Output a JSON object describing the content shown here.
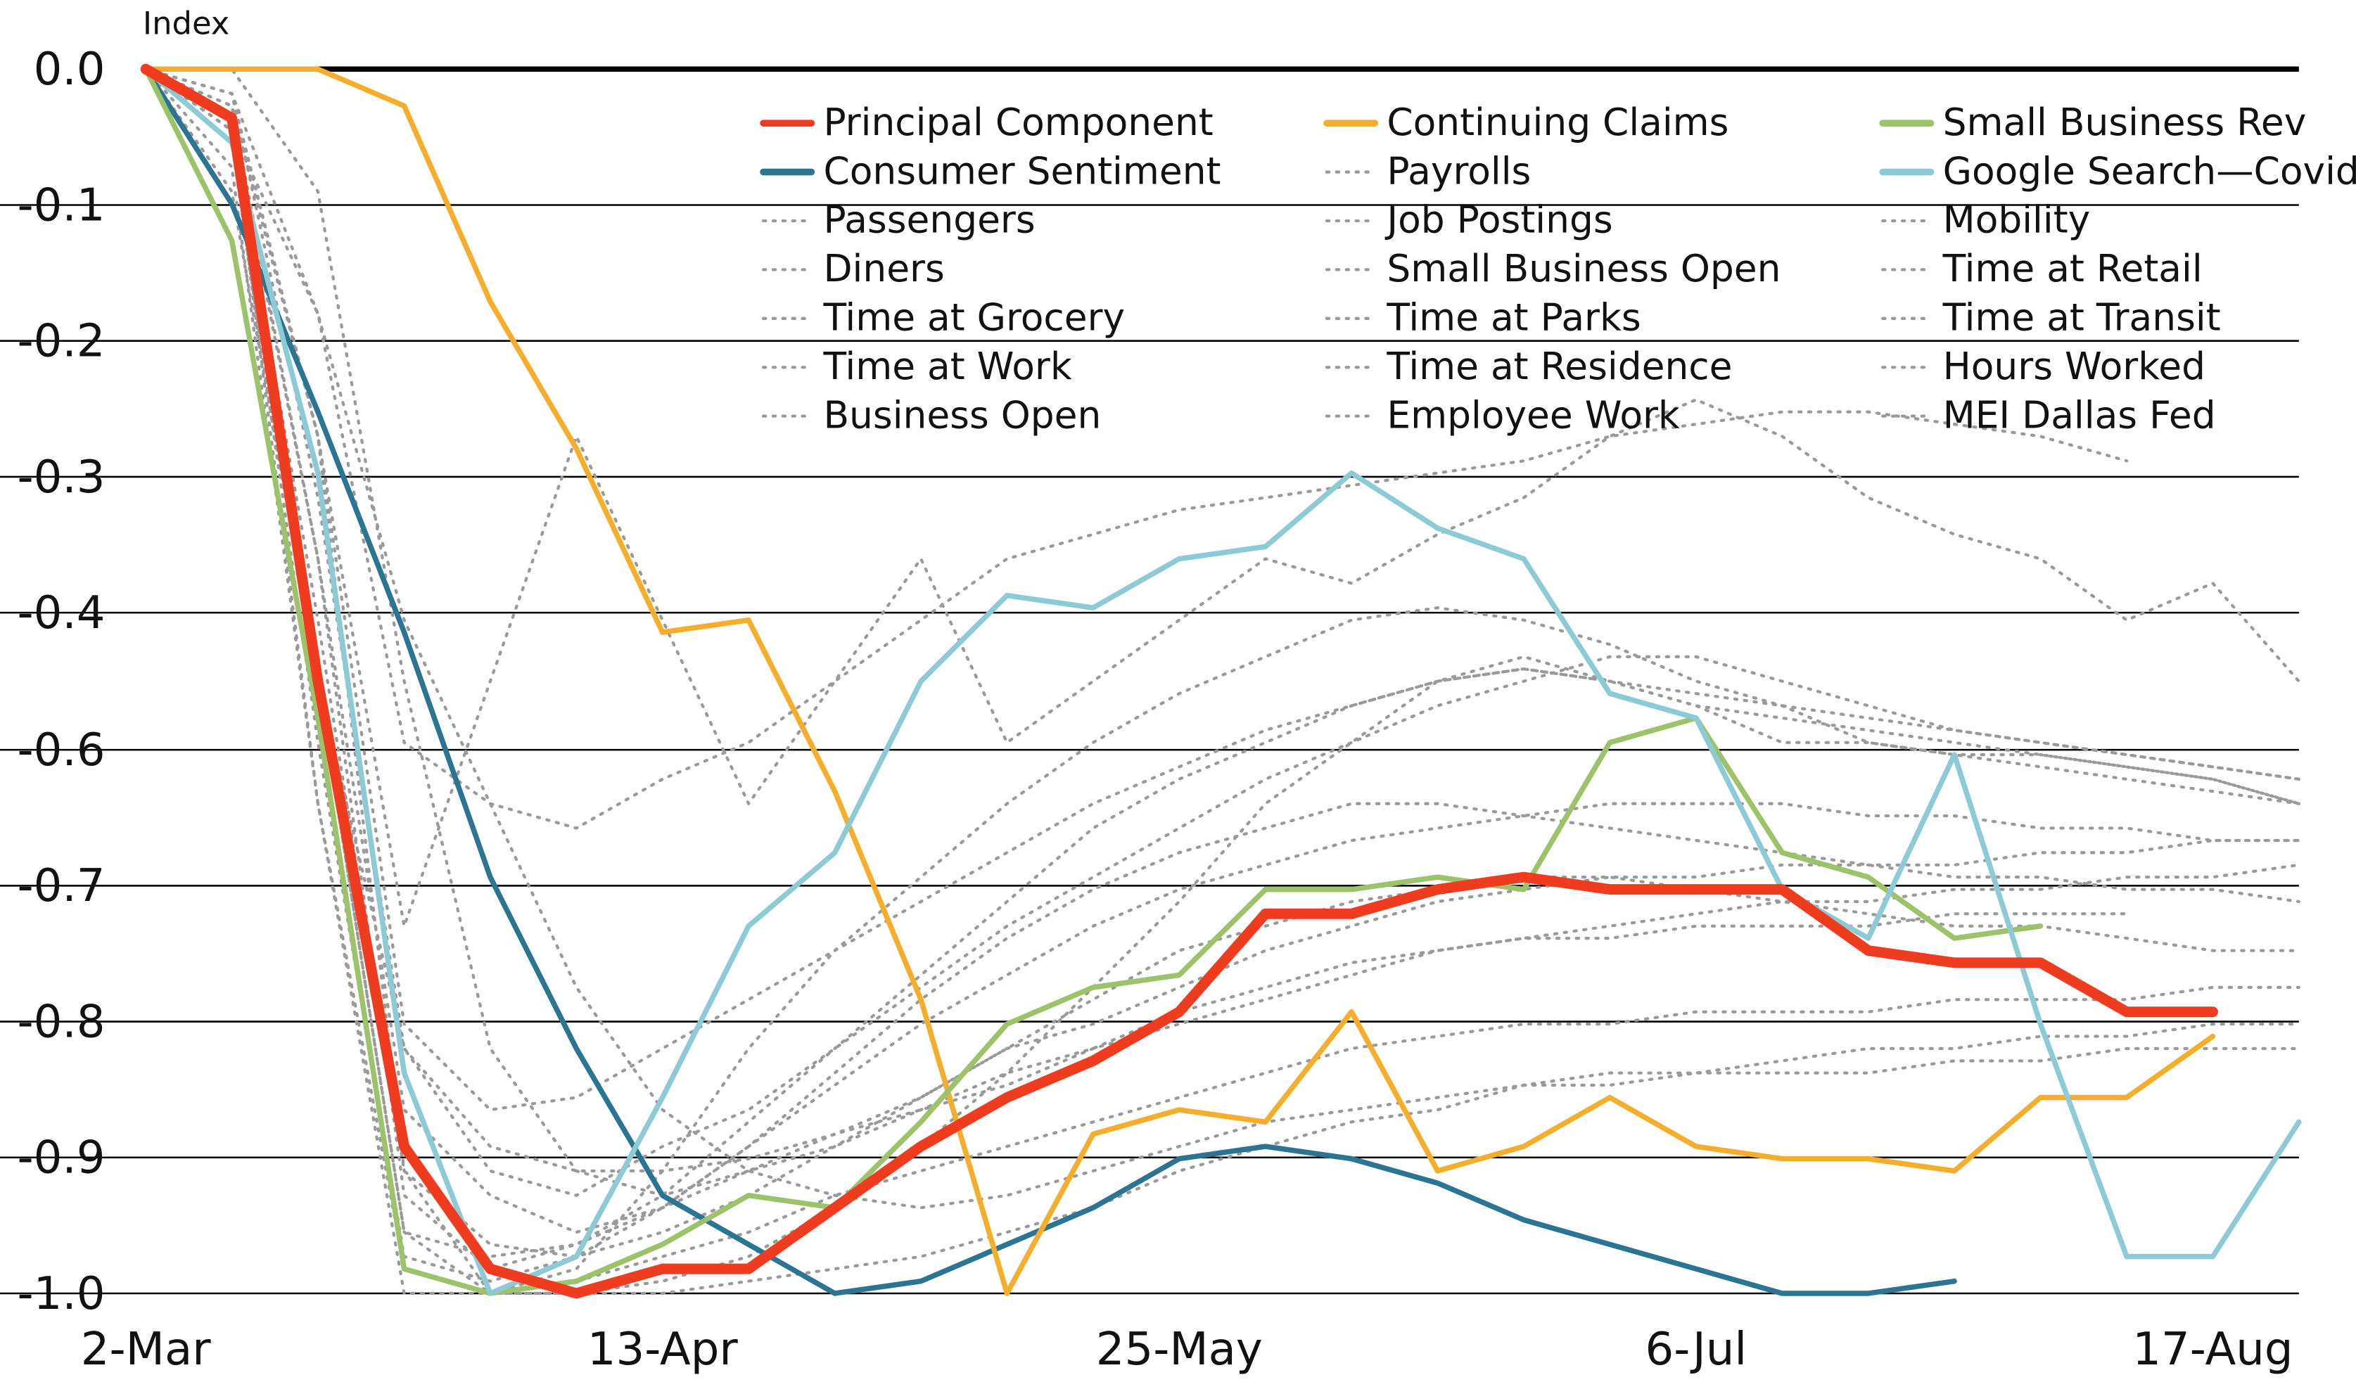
{
  "chart_data": {
    "type": "line",
    "y_label": "Index",
    "categories": [
      "2-Mar",
      null,
      null,
      null,
      null,
      null,
      "13-Apr",
      null,
      null,
      null,
      null,
      null,
      "25-May",
      null,
      null,
      null,
      null,
      null,
      "6-Jul",
      null,
      null,
      null,
      null,
      null,
      "17-Aug",
      null
    ],
    "ylim": [
      -1,
      0
    ],
    "yticks": [
      {
        "value": 0,
        "label": "0.0"
      },
      {
        "value": -0.111,
        "label": "-0.1"
      },
      {
        "value": -0.222,
        "label": "-0.2"
      },
      {
        "value": -0.333,
        "label": "-0.3"
      },
      {
        "value": -0.444,
        "label": "-0.4"
      },
      {
        "value": -0.556,
        "label": "-0.6"
      },
      {
        "value": -0.667,
        "label": "-0.7"
      },
      {
        "value": -0.778,
        "label": "-0.8"
      },
      {
        "value": -0.889,
        "label": "-0.9"
      },
      {
        "value": -1,
        "label": "-1.0"
      }
    ],
    "grid": true,
    "legend": "top-right",
    "series": [
      {
        "name": "Principal Component",
        "color": "#f03c1e",
        "values": [
          0,
          -0.04,
          -0.5,
          -0.88,
          -0.98,
          -1,
          -0.98,
          -0.98,
          -0.93,
          -0.88,
          -0.84,
          -0.81,
          -0.77,
          -0.69,
          -0.69,
          -0.67,
          -0.66,
          -0.67,
          -0.67,
          -0.67,
          -0.72,
          -0.73,
          -0.73,
          -0.77,
          -0.77,
          null
        ]
      },
      {
        "name": "Consumer Sentiment",
        "color": "#2b7593",
        "values": [
          0,
          -0.11,
          -0.28,
          -0.46,
          -0.66,
          -0.8,
          -0.92,
          -0.96,
          -1,
          -0.99,
          -0.96,
          -0.93,
          -0.89,
          -0.88,
          -0.89,
          -0.91,
          -0.94,
          -0.96,
          -0.98,
          -1,
          -1,
          -0.99,
          null,
          null,
          null,
          null
        ]
      },
      {
        "name": "Passengers",
        "color": "#9a9a9a",
        "style": "dotted",
        "values": [
          0,
          -0.02,
          -0.3,
          -0.9,
          -1,
          -1,
          -1,
          -0.99,
          -0.98,
          -0.97,
          -0.95,
          -0.93,
          -0.9,
          -0.88,
          -0.86,
          -0.85,
          -0.83,
          -0.82,
          -0.82,
          -0.81,
          -0.8,
          -0.8,
          -0.79,
          -0.79,
          -0.78,
          -0.78
        ]
      },
      {
        "name": "Diners",
        "color": "#9a9a9a",
        "style": "dotted",
        "values": [
          0,
          -0.05,
          -0.6,
          -1,
          -1,
          -1,
          -0.99,
          -0.97,
          -0.93,
          -0.88,
          -0.82,
          -0.75,
          -0.68,
          -0.6,
          -0.55,
          -0.5,
          -0.48,
          -0.5,
          -0.52,
          -0.55,
          -0.55,
          -0.56,
          -0.56,
          -0.57,
          -0.58,
          -0.6
        ]
      },
      {
        "name": "Time at Grocery",
        "color": "#9a9a9a",
        "style": "dotted",
        "values": [
          0,
          -0.02,
          -0.2,
          -0.55,
          -0.6,
          -0.62,
          -0.58,
          -0.55,
          -0.5,
          -0.45,
          -0.4,
          -0.38,
          -0.36,
          -0.35,
          -0.34,
          -0.33,
          -0.32,
          -0.3,
          -0.29,
          -0.28,
          -0.28,
          -0.29,
          -0.3,
          -0.32,
          null,
          null
        ]
      },
      {
        "name": "Time at Work",
        "color": "#9a9a9a",
        "style": "dotted",
        "values": [
          0,
          -0.03,
          -0.4,
          -0.85,
          -0.92,
          -0.95,
          -0.93,
          -0.9,
          -0.87,
          -0.84,
          -0.8,
          -0.78,
          -0.75,
          -0.72,
          -0.7,
          -0.68,
          -0.67,
          -0.66,
          -0.66,
          -0.65,
          -0.65,
          -0.65,
          -0.64,
          -0.64,
          -0.63,
          -0.63
        ]
      },
      {
        "name": "Business Open",
        "color": "#9a9a9a",
        "style": "dotted",
        "values": [
          0,
          -0.04,
          -0.5,
          -0.95,
          -0.97,
          -0.96,
          -0.93,
          -0.88,
          -0.83,
          -0.78,
          -0.74,
          -0.7,
          -0.67,
          -0.65,
          -0.63,
          -0.62,
          -0.61,
          -0.6,
          -0.6,
          -0.6,
          -0.61,
          -0.61,
          -0.62,
          -0.62,
          -0.63,
          -0.63
        ]
      },
      {
        "name": "Continuing Claims",
        "color": "#f5ad2c",
        "values": [
          0,
          0,
          0,
          -0.03,
          -0.19,
          -0.31,
          -0.46,
          -0.45,
          -0.59,
          -0.76,
          -1,
          -0.87,
          -0.85,
          -0.86,
          -0.77,
          -0.9,
          -0.88,
          -0.84,
          -0.88,
          -0.89,
          -0.89,
          -0.9,
          -0.84,
          -0.84,
          -0.79,
          null
        ]
      },
      {
        "name": "Payrolls",
        "color": "#9a9a9a",
        "style": "dotted",
        "values": [
          0,
          0,
          -0.1,
          -0.5,
          -0.8,
          -0.9,
          -0.92,
          -0.9,
          -0.88,
          -0.85,
          -0.82,
          -0.8,
          -0.77,
          -0.75,
          -0.73,
          -0.72,
          -0.71,
          -0.71,
          -0.7,
          -0.7,
          -0.7,
          -0.69,
          -0.69,
          -0.69,
          null,
          null
        ]
      },
      {
        "name": "Job Postings",
        "color": "#9a9a9a",
        "style": "dotted",
        "values": [
          0,
          -0.05,
          -0.2,
          -0.45,
          -0.6,
          -0.75,
          -0.85,
          -0.9,
          -0.92,
          -0.93,
          -0.92,
          -0.9,
          -0.88,
          -0.86,
          -0.85,
          -0.84,
          -0.83,
          -0.83,
          -0.82,
          -0.82,
          -0.82,
          -0.81,
          -0.81,
          -0.8,
          -0.8,
          -0.8
        ]
      },
      {
        "name": "Small Business Open",
        "color": "#9a9a9a",
        "style": "dotted",
        "values": [
          0,
          -0.06,
          -0.55,
          -0.97,
          -0.99,
          -0.97,
          -0.93,
          -0.88,
          -0.82,
          -0.76,
          -0.71,
          -0.67,
          -0.64,
          -0.62,
          -0.6,
          -0.6,
          -0.61,
          -0.62,
          -0.63,
          -0.64,
          -0.65,
          -0.66,
          -0.66,
          -0.67,
          -0.67,
          -0.68
        ]
      },
      {
        "name": "Time at Parks",
        "color": "#9a9a9a",
        "style": "dotted",
        "values": [
          0,
          -0.03,
          -0.3,
          -0.7,
          -0.5,
          -0.3,
          -0.45,
          -0.6,
          -0.5,
          -0.4,
          -0.55,
          -0.5,
          -0.45,
          -0.4,
          -0.42,
          -0.38,
          -0.35,
          -0.3,
          -0.27,
          -0.3,
          -0.35,
          -0.38,
          -0.4,
          -0.45,
          -0.42,
          -0.5
        ]
      },
      {
        "name": "Time at Residence",
        "color": "#9a9a9a",
        "style": "dotted",
        "values": [
          0,
          -0.02,
          -0.35,
          -0.8,
          -0.9,
          -0.92,
          -0.88,
          -0.85,
          -0.8,
          -0.75,
          -0.7,
          -0.66,
          -0.62,
          -0.58,
          -0.55,
          -0.52,
          -0.5,
          -0.48,
          -0.48,
          -0.5,
          -0.52,
          -0.54,
          -0.55,
          -0.56,
          -0.57,
          -0.58
        ]
      },
      {
        "name": "Employee Work",
        "color": "#9a9a9a",
        "style": "dotted",
        "values": [
          0,
          -0.05,
          -0.45,
          -0.9,
          -0.96,
          -0.97,
          -0.95,
          -0.92,
          -0.88,
          -0.84,
          -0.8,
          -0.76,
          -0.72,
          -0.7,
          -0.68,
          -0.67,
          -0.66,
          -0.66,
          -0.67,
          -0.68,
          -0.69,
          -0.7,
          -0.7,
          -0.71,
          -0.72,
          -0.72
        ]
      },
      {
        "name": "Small Business Rev",
        "color": "#9cc26a",
        "values": [
          0,
          -0.14,
          -0.53,
          -0.98,
          -1,
          -0.99,
          -0.96,
          -0.92,
          -0.93,
          -0.86,
          -0.78,
          -0.75,
          -0.74,
          -0.67,
          -0.67,
          -0.66,
          -0.67,
          -0.55,
          -0.53,
          -0.64,
          -0.66,
          -0.71,
          -0.7,
          null,
          null,
          null
        ]
      },
      {
        "name": "Google Search—Covid",
        "color": "#8ccbd5",
        "values": [
          0,
          -0.06,
          -0.33,
          -0.82,
          -1,
          -0.97,
          -0.84,
          -0.7,
          -0.64,
          -0.5,
          -0.43,
          -0.44,
          -0.4,
          -0.39,
          -0.33,
          -0.375,
          -0.4,
          -0.51,
          -0.53,
          -0.67,
          -0.71,
          -0.56,
          -0.78,
          -0.97,
          -0.97,
          -0.86
        ]
      },
      {
        "name": "Mobility",
        "color": "#9a9a9a",
        "style": "dotted",
        "values": [
          0,
          -0.02,
          -0.3,
          -0.78,
          -0.85,
          -0.84,
          -0.8,
          -0.76,
          -0.72,
          -0.68,
          -0.64,
          -0.6,
          -0.57,
          -0.54,
          -0.52,
          -0.5,
          -0.49,
          -0.5,
          -0.52,
          -0.53,
          -0.54,
          -0.55,
          -0.56,
          -0.57,
          -0.58,
          -0.6
        ]
      },
      {
        "name": "Time at Retail",
        "color": "#9a9a9a",
        "style": "dotted",
        "values": [
          0,
          -0.04,
          -0.4,
          -0.92,
          -0.98,
          -0.96,
          -0.92,
          -0.86,
          -0.8,
          -0.74,
          -0.68,
          -0.62,
          -0.58,
          -0.55,
          -0.52,
          -0.5,
          -0.49,
          -0.5,
          -0.51,
          -0.52,
          -0.53,
          -0.54,
          -0.55,
          -0.56,
          -0.57,
          -0.58
        ]
      },
      {
        "name": "Time at Transit",
        "color": "#9a9a9a",
        "style": "dotted",
        "values": [
          0,
          -0.05,
          -0.5,
          -0.95,
          -1,
          -0.99,
          -0.97,
          -0.95,
          -0.92,
          -0.9,
          -0.88,
          -0.86,
          -0.84,
          -0.82,
          -0.8,
          -0.79,
          -0.78,
          -0.78,
          -0.77,
          -0.77,
          -0.77,
          -0.76,
          -0.76,
          -0.76,
          -0.75,
          -0.75
        ]
      },
      {
        "name": "Hours Worked",
        "color": "#9a9a9a",
        "style": "dotted",
        "values": [
          0,
          -0.08,
          -0.6,
          -0.98,
          -1,
          -0.98,
          -0.9,
          -0.8,
          -0.72,
          -0.66,
          -0.6,
          -0.55,
          -0.51,
          -0.48,
          -0.45,
          -0.44,
          -0.45,
          -0.47,
          -0.5,
          -0.52,
          -0.55,
          -0.56,
          -0.57,
          -0.58,
          -0.59,
          -0.6
        ]
      },
      {
        "name": "MEI Dallas Fed",
        "color": "#9a9a9a",
        "style": "dotted",
        "values": [
          0,
          -0.1,
          -0.5,
          -0.8,
          -0.88,
          -0.9,
          -0.9,
          -0.89,
          -0.87,
          -0.85,
          -0.83,
          -0.8,
          -0.78,
          -0.76,
          -0.74,
          -0.72,
          -0.71,
          -0.7,
          -0.69,
          -0.68,
          -0.68,
          -0.67,
          -0.67,
          -0.66,
          -0.66,
          -0.65
        ]
      }
    ]
  }
}
